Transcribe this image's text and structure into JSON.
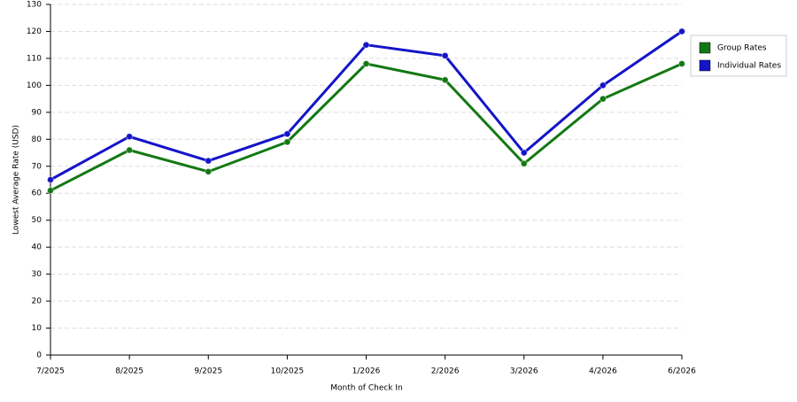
{
  "chart_data": {
    "type": "line",
    "x_label": "Month of Check In",
    "y_label": "Lowest Average Rate (USD)",
    "categories": [
      "7/2025",
      "8/2025",
      "9/2025",
      "10/2025",
      "1/2026",
      "2/2026",
      "3/2026",
      "4/2026",
      "6/2026"
    ],
    "series": [
      {
        "name": "Group Rates",
        "color": "#137813",
        "values": [
          61,
          76,
          68,
          79,
          108,
          102,
          71,
          95,
          108
        ]
      },
      {
        "name": "Individual Rates",
        "color": "#1414c8",
        "values": [
          65,
          81,
          72,
          82,
          115,
          111,
          75,
          100,
          120
        ]
      }
    ],
    "ylim": [
      0,
      130
    ],
    "yticks": [
      0,
      10,
      20,
      30,
      40,
      50,
      60,
      70,
      80,
      90,
      100,
      110,
      120,
      130
    ],
    "grid": true,
    "legend": "right"
  }
}
